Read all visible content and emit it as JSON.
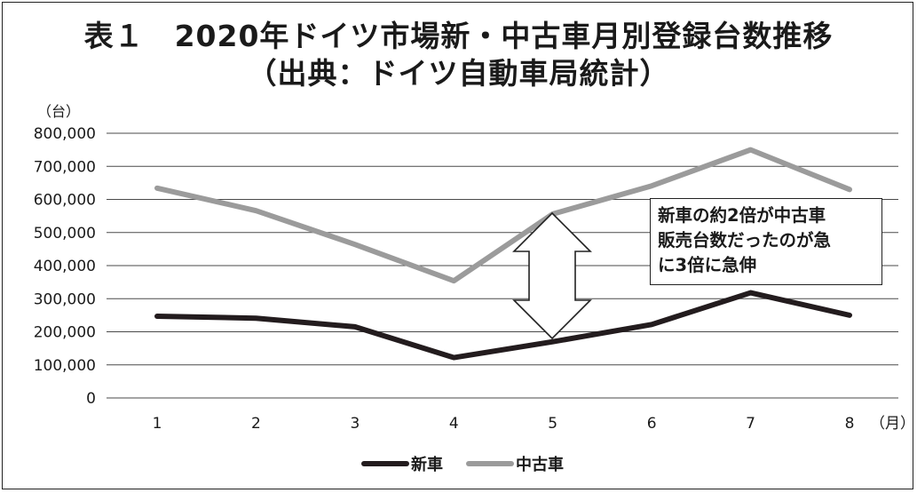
{
  "title_line1": "表１　2020年ドイツ市場新・中古車月別登録台数推移",
  "title_line2": "（出典：ドイツ自動車局統計）",
  "annotation": "新車の約2倍が中古車\n販売台数だったのが急\nに3倍に急伸",
  "colors": {
    "new": "#231c1e",
    "used": "#9b9b9b",
    "grid": "#4a4a4a"
  },
  "chart_data": {
    "type": "line",
    "categories": [
      "1",
      "2",
      "3",
      "4",
      "5",
      "6",
      "7",
      "8"
    ],
    "x_unit": "（月）",
    "y_unit": "（台）",
    "y_ticks": [
      "0",
      "100,000",
      "200,000",
      "300,000",
      "400,000",
      "500,000",
      "600,000",
      "700,000",
      "800,000"
    ],
    "ylim": [
      0,
      800000
    ],
    "grid": true,
    "legend": "bottom",
    "series": [
      {
        "name": "新車",
        "values": [
          247000,
          241000,
          215000,
          122000,
          170000,
          222000,
          318000,
          250000
        ]
      },
      {
        "name": "中古車",
        "values": [
          634000,
          566000,
          464000,
          354000,
          556000,
          641000,
          750000,
          630000
        ]
      }
    ]
  }
}
